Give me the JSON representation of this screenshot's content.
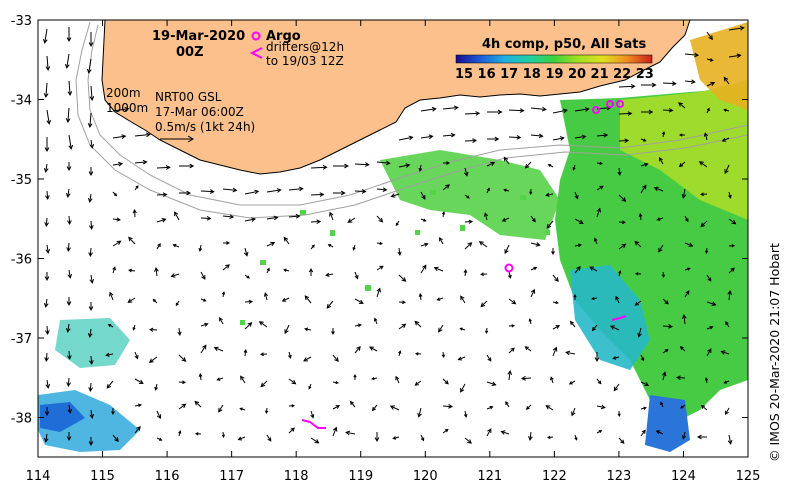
{
  "header": {
    "date": "19-Mar-2020",
    "time": "00Z",
    "argo_label": "Argo",
    "drifters_line1": "drifters@12h",
    "drifters_line2": "to 19/03 12Z"
  },
  "legend": {
    "title": "4h comp, p50, All Sats",
    "ticks": [
      "15",
      "16",
      "17",
      "18",
      "19",
      "20",
      "21",
      "22",
      "23"
    ]
  },
  "annotations": {
    "isobath_200": "200m",
    "isobath_1000": "1000m",
    "product": "NRT00 GSL",
    "product_date": "17-Mar 06:00Z",
    "vector_scale": "0.5m/s (1kt 24h)"
  },
  "axes": {
    "x_ticks": [
      "114",
      "115",
      "116",
      "117",
      "118",
      "119",
      "120",
      "121",
      "122",
      "123",
      "124",
      "125"
    ],
    "y_ticks": [
      "-33",
      "-34",
      "-35",
      "-36",
      "-37",
      "-38"
    ]
  },
  "credit": "© IMOS 20-Mar-2020 21:07 Hobart",
  "colors": {
    "land": "#fbc08c",
    "argo": "#ff00ff",
    "arrow": "#000000",
    "isobath": "#a0a0a0"
  }
}
